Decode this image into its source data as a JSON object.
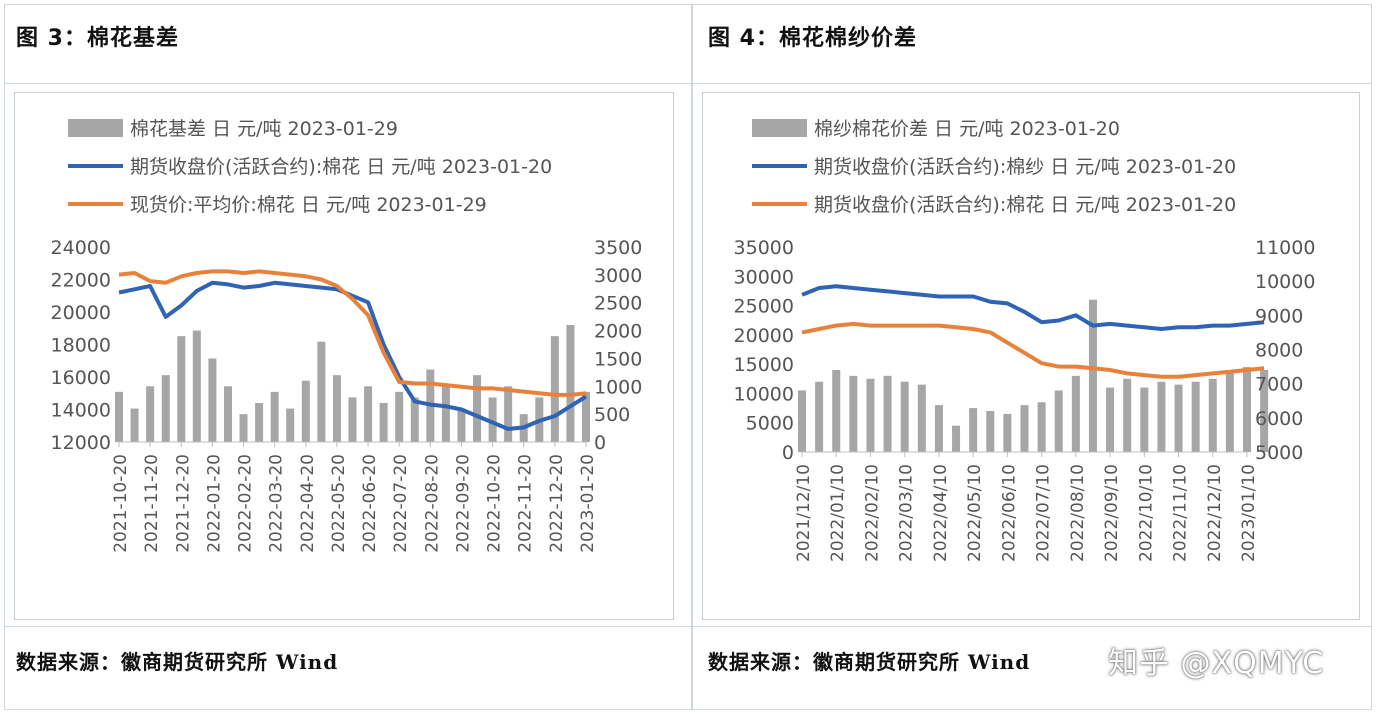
{
  "panels": [
    {
      "title": "图 3：棉花基差"
    },
    {
      "title": "图 4：棉花棉纱价差"
    }
  ],
  "source": [
    "数据来源：徽商期货研究所 Wind",
    "数据来源：徽商期货研究所 Wind"
  ],
  "watermark": "知乎 @XQMYC",
  "chart_data": [
    {
      "type": "bar",
      "legend_placement": "top-left",
      "grid": false,
      "series": [
        {
          "name": "棉花基差 日 元/吨 2023-01-29",
          "kind": "bar",
          "axis": "right",
          "color": "#a6a6a6",
          "x": [
            0,
            0.5,
            1,
            1.5,
            2,
            2.5,
            3,
            3.5,
            4,
            4.5,
            5,
            5.5,
            6,
            6.5,
            7,
            7.5,
            8,
            8.5,
            9,
            9.5,
            10,
            10.5,
            11,
            11.5,
            12,
            12.5,
            13,
            13.5,
            14,
            14.5,
            15
          ],
          "values": [
            900,
            600,
            1000,
            1200,
            1900,
            2000,
            1500,
            1000,
            500,
            700,
            900,
            600,
            1100,
            1800,
            1200,
            800,
            1000,
            700,
            900,
            800,
            1300,
            1000,
            600,
            1200,
            800,
            1000,
            500,
            800,
            1900,
            2100,
            900
          ]
        },
        {
          "name": "期货收盘价(活跃合约):棉花 日 元/吨 2023-01-20",
          "kind": "line",
          "axis": "left",
          "color": "#2e63b6",
          "x": [
            0,
            0.5,
            1,
            1.5,
            2,
            2.5,
            3,
            3.5,
            4,
            4.5,
            5,
            5.5,
            6,
            6.5,
            7,
            7.5,
            8,
            8.5,
            9,
            9.5,
            10,
            10.5,
            11,
            11.5,
            12,
            12.5,
            13,
            13.5,
            14,
            14.5,
            15
          ],
          "values": [
            21200,
            21400,
            21600,
            19700,
            20400,
            21300,
            21800,
            21700,
            21500,
            21600,
            21800,
            21700,
            21600,
            21500,
            21400,
            21000,
            20600,
            18000,
            16000,
            14500,
            14300,
            14200,
            14000,
            13600,
            13200,
            12800,
            12900,
            13300,
            13600,
            14200,
            14800
          ]
        },
        {
          "name": "现货价:平均价:棉花 日 元/吨 2023-01-29",
          "kind": "line",
          "axis": "left",
          "color": "#e8823a",
          "x": [
            0,
            0.5,
            1,
            1.5,
            2,
            2.5,
            3,
            3.5,
            4,
            4.5,
            5,
            5.5,
            6,
            6.5,
            7,
            7.5,
            8,
            8.5,
            9,
            9.5,
            10,
            10.5,
            11,
            11.5,
            12,
            12.5,
            13,
            13.5,
            14,
            14.5,
            15
          ],
          "values": [
            22300,
            22400,
            21900,
            21800,
            22200,
            22400,
            22500,
            22500,
            22400,
            22500,
            22400,
            22300,
            22200,
            22000,
            21600,
            20800,
            19800,
            17500,
            15700,
            15600,
            15600,
            15500,
            15400,
            15300,
            15300,
            15200,
            15100,
            15000,
            14900,
            14900,
            15000
          ]
        }
      ],
      "categories": [
        "2021-10-20",
        "2021-11-20",
        "2021-12-20",
        "2022-01-20",
        "2022-02-20",
        "2022-03-20",
        "2022-04-20",
        "2022-05-20",
        "2022-06-20",
        "2022-07-20",
        "2022-08-20",
        "2022-09-20",
        "2022-10-20",
        "2022-11-20",
        "2022-12-20",
        "2023-01-20"
      ],
      "y_left": {
        "min": 12000,
        "max": 24000,
        "ticks": [
          "12000",
          "14000",
          "16000",
          "18000",
          "20000",
          "22000",
          "24000"
        ]
      },
      "y_right": {
        "min": 0,
        "max": 3500,
        "ticks": [
          "0",
          "500",
          "1000",
          "1500",
          "2000",
          "2500",
          "3000",
          "3500"
        ]
      }
    },
    {
      "type": "bar",
      "legend_placement": "top-left",
      "grid": false,
      "series": [
        {
          "name": "棉纱棉花价差 日 元/吨 2023-01-20",
          "kind": "bar",
          "axis": "left",
          "color": "#a6a6a6",
          "x": [
            0,
            0.5,
            1,
            1.5,
            2,
            2.5,
            3,
            3.5,
            4,
            4.5,
            5,
            5.5,
            6,
            6.5,
            7,
            7.5,
            8,
            8.5,
            9,
            9.5,
            10,
            10.5,
            11,
            11.5,
            12,
            12.5,
            13,
            13.5
          ],
          "values": [
            10500,
            12000,
            14000,
            13000,
            12500,
            13000,
            12000,
            11500,
            8000,
            4500,
            7500,
            7000,
            6500,
            8000,
            8500,
            10500,
            13000,
            26000,
            11000,
            12500,
            11000,
            12000,
            11500,
            12000,
            12500,
            13500,
            14500,
            14000
          ]
        },
        {
          "name": "期货收盘价(活跃合约):棉纱 日 元/吨 2023-01-20",
          "kind": "line",
          "axis": "right",
          "color": "#2e63b6",
          "x": [
            0,
            0.5,
            1,
            1.5,
            2,
            2.5,
            3,
            3.5,
            4,
            4.5,
            5,
            5.5,
            6,
            6.5,
            7,
            7.5,
            8,
            8.5,
            9,
            9.5,
            10,
            10.5,
            11,
            11.5,
            12,
            12.5,
            13,
            13.5
          ],
          "values": [
            9600,
            9800,
            9850,
            9800,
            9750,
            9700,
            9650,
            9600,
            9550,
            9550,
            9550,
            9400,
            9350,
            9100,
            8800,
            8850,
            9000,
            8700,
            8750,
            8700,
            8650,
            8600,
            8650,
            8650,
            8700,
            8700,
            8750,
            8800
          ]
        },
        {
          "name": "期货收盘价(活跃合约):棉花 日 元/吨 2023-01-20",
          "kind": "line",
          "axis": "right",
          "color": "#e8823a",
          "x": [
            0,
            0.5,
            1,
            1.5,
            2,
            2.5,
            3,
            3.5,
            4,
            4.5,
            5,
            5.5,
            6,
            6.5,
            7,
            7.5,
            8,
            8.5,
            9,
            9.5,
            10,
            10.5,
            11,
            11.5,
            12,
            12.5,
            13,
            13.5
          ],
          "values": [
            8500,
            8600,
            8700,
            8750,
            8700,
            8700,
            8700,
            8700,
            8700,
            8650,
            8600,
            8500,
            8200,
            7900,
            7600,
            7500,
            7500,
            7450,
            7400,
            7300,
            7250,
            7200,
            7200,
            7250,
            7300,
            7350,
            7400,
            7450
          ]
        }
      ],
      "categories": [
        "2021/12/10",
        "2022/01/10",
        "2022/02/10",
        "2022/03/10",
        "2022/04/10",
        "2022/05/10",
        "2022/06/10",
        "2022/07/10",
        "2022/08/10",
        "2022/09/10",
        "2022/10/10",
        "2022/11/10",
        "2022/12/10",
        "2023/01/10"
      ],
      "y_left": {
        "min": 0,
        "max": 35000,
        "ticks": [
          "0",
          "5000",
          "10000",
          "15000",
          "20000",
          "25000",
          "30000",
          "35000"
        ]
      },
      "y_right": {
        "min": 5000,
        "max": 11000,
        "ticks": [
          "5000",
          "6000",
          "7000",
          "8000",
          "9000",
          "10000",
          "11000"
        ]
      }
    }
  ]
}
